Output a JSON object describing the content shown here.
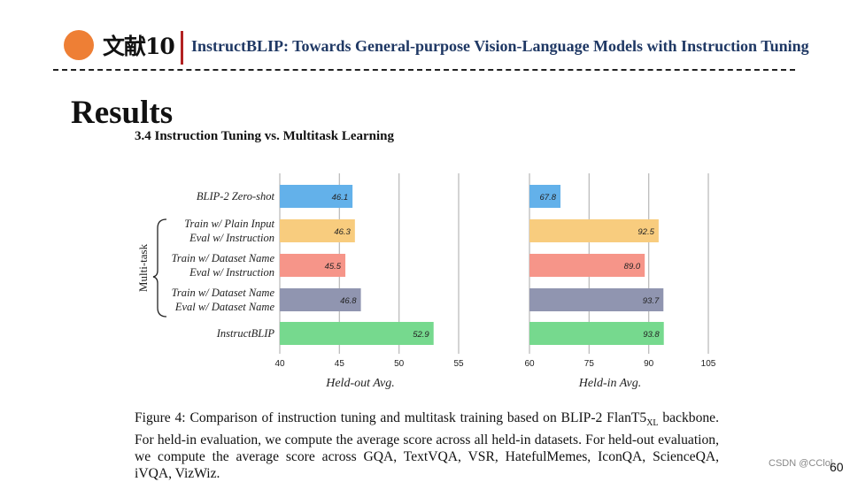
{
  "slide": {
    "ref_label": "文献10",
    "header_title": "InstructBLIP: Towards General-purpose Vision-Language Models with Instruction Tuning",
    "heading": "Results",
    "section": "3.4    Instruction Tuning vs. Multitask Learning",
    "caption_main": "Figure 4:  Comparison of instruction tuning and multitask training based on BLIP-2 FlanT5",
    "caption_sub": "XL",
    "caption_rest": "backbone.  For held-in evaluation, we compute the average score across all held-in datasets.  For held-out evaluation, we compute the average score across GQA, TextVQA, VSR, HatefulMemes, IconQA, ScienceQA, iVQA, VizWiz.",
    "watermark": "CSDN @CClol",
    "page_number": "60"
  },
  "chart_data": {
    "type": "bar",
    "orientation": "horizontal",
    "group_label": "Multi-task",
    "categories": [
      [
        "BLIP-2 Zero-shot"
      ],
      [
        "Train w/ Plain Input",
        "Eval w/ Instruction"
      ],
      [
        "Train w/ Dataset Name",
        "Eval w/ Instruction"
      ],
      [
        "Train w/ Dataset Name",
        "Eval w/ Dataset Name"
      ],
      [
        "InstructBLIP"
      ]
    ],
    "colors": [
      "#63b1ea",
      "#f8cc7e",
      "#f69589",
      "#9095b0",
      "#76d98e"
    ],
    "panels": [
      {
        "xlabel": "Held-out Avg.",
        "xlim": [
          40,
          55
        ],
        "ticks": [
          40,
          45,
          50,
          55
        ],
        "labels": [
          "46.1",
          "46.3",
          "45.5",
          "46.8",
          "52.9"
        ],
        "values": [
          46.1,
          46.3,
          45.5,
          46.8,
          52.9
        ]
      },
      {
        "xlabel": "Held-in Avg.",
        "xlim": [
          60,
          105
        ],
        "ticks": [
          60,
          75,
          90,
          105
        ],
        "labels": [
          "67.8",
          "92.5",
          "89.0",
          "93.7",
          "93.8"
        ],
        "values": [
          67.8,
          92.5,
          89.0,
          93.7,
          93.8
        ]
      }
    ]
  }
}
